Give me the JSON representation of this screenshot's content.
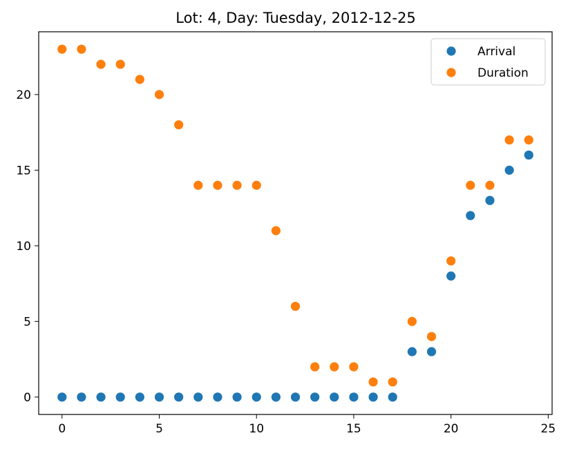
{
  "chart_data": {
    "type": "scatter",
    "title": "Lot: 4, Day: Tuesday, 2012-12-25",
    "xlabel": "",
    "ylabel": "",
    "xlim": [
      -1.2,
      25.2
    ],
    "ylim": [
      -1.15,
      24.15
    ],
    "xticks": [
      0,
      5,
      10,
      15,
      20,
      25
    ],
    "yticks": [
      0,
      5,
      10,
      15,
      20
    ],
    "grid": false,
    "legend_position": "top-right",
    "x": [
      0,
      1,
      2,
      3,
      4,
      5,
      6,
      7,
      8,
      9,
      10,
      11,
      12,
      13,
      14,
      15,
      16,
      17,
      18,
      19,
      20,
      21,
      22,
      23,
      24
    ],
    "series": [
      {
        "name": "Arrival",
        "color": "#1f77b4",
        "values": [
          0,
          0,
          0,
          0,
          0,
          0,
          0,
          0,
          0,
          0,
          0,
          0,
          0,
          0,
          0,
          0,
          0,
          0,
          3,
          3,
          8,
          12,
          13,
          15,
          16
        ]
      },
      {
        "name": "Duration",
        "color": "#ff7f0e",
        "values": [
          23,
          23,
          22,
          22,
          21,
          20,
          18,
          14,
          14,
          14,
          14,
          11,
          6,
          2,
          2,
          2,
          1,
          1,
          5,
          4,
          9,
          14,
          14,
          17,
          17
        ]
      }
    ]
  }
}
